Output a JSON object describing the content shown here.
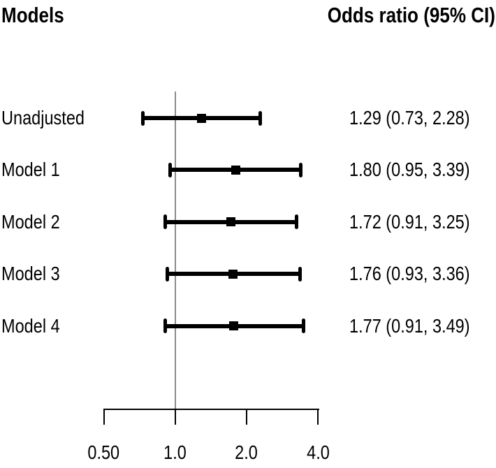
{
  "header": {
    "left": "Models",
    "right": "Odds ratio (95% CI)"
  },
  "colors": {
    "foreground": "#000000",
    "reference_line": "#8a8a8a",
    "background": "#ffffff"
  },
  "chart_data": {
    "type": "scatter",
    "variant": "forest-plot",
    "title": "",
    "xlabel": "",
    "ylabel": "",
    "grid": false,
    "legend": null,
    "rows": [
      {
        "label": "Unadjusted",
        "or": 1.29,
        "ci_low": 0.73,
        "ci_high": 2.28,
        "text": "1.29 (0.73, 2.28)"
      },
      {
        "label": "Model 1",
        "or": 1.8,
        "ci_low": 0.95,
        "ci_high": 3.39,
        "text": "1.80 (0.95, 3.39)"
      },
      {
        "label": "Model 2",
        "or": 1.72,
        "ci_low": 0.91,
        "ci_high": 3.25,
        "text": "1.72 (0.91, 3.25)"
      },
      {
        "label": "Model 3",
        "or": 1.76,
        "ci_low": 0.93,
        "ci_high": 3.36,
        "text": "1.76 (0.93, 3.36)"
      },
      {
        "label": "Model 4",
        "or": 1.77,
        "ci_low": 0.91,
        "ci_high": 3.49,
        "text": "1.77 (0.91, 3.49)"
      }
    ],
    "x_axis": {
      "scale": "log2",
      "range": [
        0.5,
        4.0
      ],
      "ticks": [
        0.5,
        1.0,
        2.0,
        4.0
      ],
      "tick_labels": [
        "0.50",
        "1.0",
        "2.0",
        "4.0"
      ],
      "reference_line": 1.0
    }
  }
}
